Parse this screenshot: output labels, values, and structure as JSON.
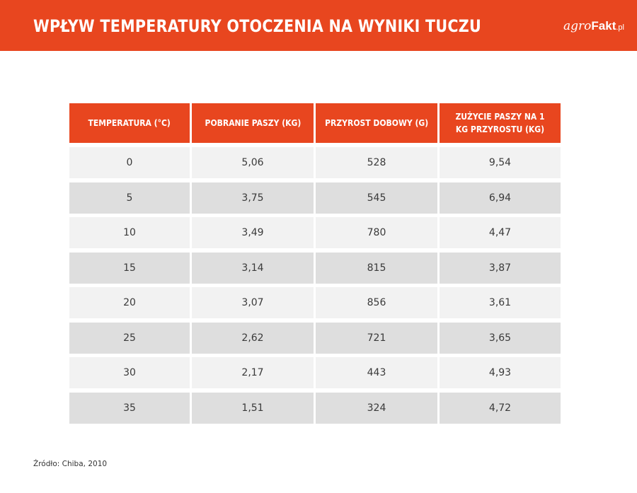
{
  "header": {
    "title": "WPŁYW TEMPERATURY OTOCZENIA NA WYNIKI TUCZU",
    "logo_agro": "agro",
    "logo_fakt": "Fakt",
    "logo_pl": ".pl"
  },
  "table": {
    "headers": [
      "TEMPERATURA (°C)",
      "POBRANIE PASZY (KG)",
      "PRZYROST DOBOWY (G)",
      "ZUŻYCIE PASZY NA 1 KG PRZYROSTU (KG)"
    ],
    "rows": [
      [
        "0",
        "5,06",
        "528",
        "9,54"
      ],
      [
        "5",
        "3,75",
        "545",
        "6,94"
      ],
      [
        "10",
        "3,49",
        "780",
        "4,47"
      ],
      [
        "15",
        "3,14",
        "815",
        "3,87"
      ],
      [
        "20",
        "3,07",
        "856",
        "3,61"
      ],
      [
        "25",
        "2,62",
        "721",
        "3,65"
      ],
      [
        "30",
        "2,17",
        "443",
        "4,93"
      ],
      [
        "35",
        "1,51",
        "324",
        "4,72"
      ]
    ]
  },
  "footer": {
    "source": "Źródło: Chiba, 2010"
  },
  "colors": {
    "accent": "#e8461f",
    "row_light": "#f2f2f2",
    "row_dark": "#dedede"
  }
}
